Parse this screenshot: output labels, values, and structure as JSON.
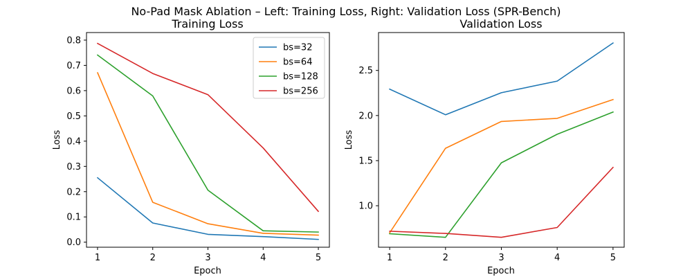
{
  "suptitle": "No-Pad Mask Ablation – Left: Training Loss, Right: Validation Loss (SPR-Bench)",
  "colors": {
    "bs=32": "#1f77b4",
    "bs=64": "#ff7f0e",
    "bs=128": "#2ca02c",
    "bs=256": "#d62728"
  },
  "chart_data": [
    {
      "type": "line",
      "title": "Training Loss",
      "xlabel": "Epoch",
      "ylabel": "Loss",
      "x": [
        1,
        2,
        3,
        4,
        5
      ],
      "xticks": [
        "1",
        "2",
        "3",
        "4",
        "5"
      ],
      "yticks": [
        "0.0",
        "0.1",
        "0.2",
        "0.3",
        "0.4",
        "0.5",
        "0.6",
        "0.7",
        "0.8"
      ],
      "ylim": [
        -0.02,
        0.83
      ],
      "xlim": [
        0.8,
        5.2
      ],
      "grid": false,
      "legend": "top-right",
      "series": [
        {
          "name": "bs=32",
          "values": [
            0.255,
            0.076,
            0.031,
            0.022,
            0.011
          ]
        },
        {
          "name": "bs=64",
          "values": [
            0.671,
            0.158,
            0.073,
            0.035,
            0.028
          ]
        },
        {
          "name": "bs=128",
          "values": [
            0.741,
            0.579,
            0.206,
            0.045,
            0.04
          ]
        },
        {
          "name": "bs=256",
          "values": [
            0.787,
            0.668,
            0.584,
            0.373,
            0.122
          ]
        }
      ]
    },
    {
      "type": "line",
      "title": "Validation Loss",
      "xlabel": "Epoch",
      "ylabel": "Loss",
      "x": [
        1,
        2,
        3,
        4,
        5
      ],
      "xticks": [
        "1",
        "2",
        "3",
        "4",
        "5"
      ],
      "yticks": [
        "1.0",
        "1.5",
        "2.0",
        "2.5"
      ],
      "ytick_values": [
        1.0,
        1.5,
        2.0,
        2.5
      ],
      "ylim": [
        0.54,
        2.92
      ],
      "xlim": [
        0.8,
        5.2
      ],
      "grid": false,
      "series": [
        {
          "name": "bs=32",
          "values": [
            2.293,
            2.009,
            2.253,
            2.382,
            2.804
          ]
        },
        {
          "name": "bs=64",
          "values": [
            0.7,
            1.637,
            1.934,
            1.969,
            2.177
          ]
        },
        {
          "name": "bs=128",
          "values": [
            0.69,
            0.65,
            1.476,
            1.792,
            2.039
          ]
        },
        {
          "name": "bs=256",
          "values": [
            0.717,
            0.693,
            0.65,
            0.759,
            1.425
          ]
        }
      ]
    }
  ]
}
